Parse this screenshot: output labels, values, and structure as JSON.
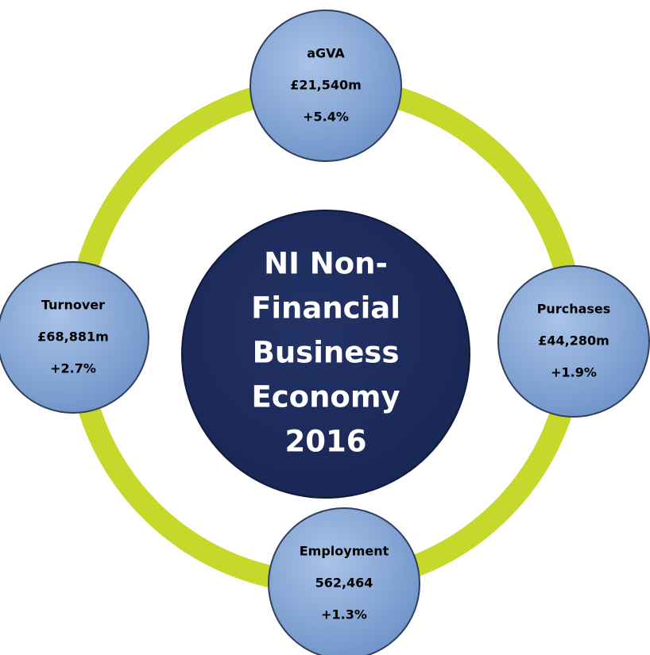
{
  "center": {
    "lines": [
      "NI Non-",
      "Financial",
      "Business",
      "Economy",
      "2016"
    ]
  },
  "nodes": [
    {
      "label": "aGVA",
      "value": "£21,540m",
      "change": "+5.4%"
    },
    {
      "label": "Purchases",
      "value": "£44,280m",
      "change": "+1.9%"
    },
    {
      "label": "Employment",
      "value": "562,464",
      "change": "+1.3%"
    },
    {
      "label": "Turnover",
      "value": "£68,881m",
      "change": "+2.7%"
    }
  ]
}
